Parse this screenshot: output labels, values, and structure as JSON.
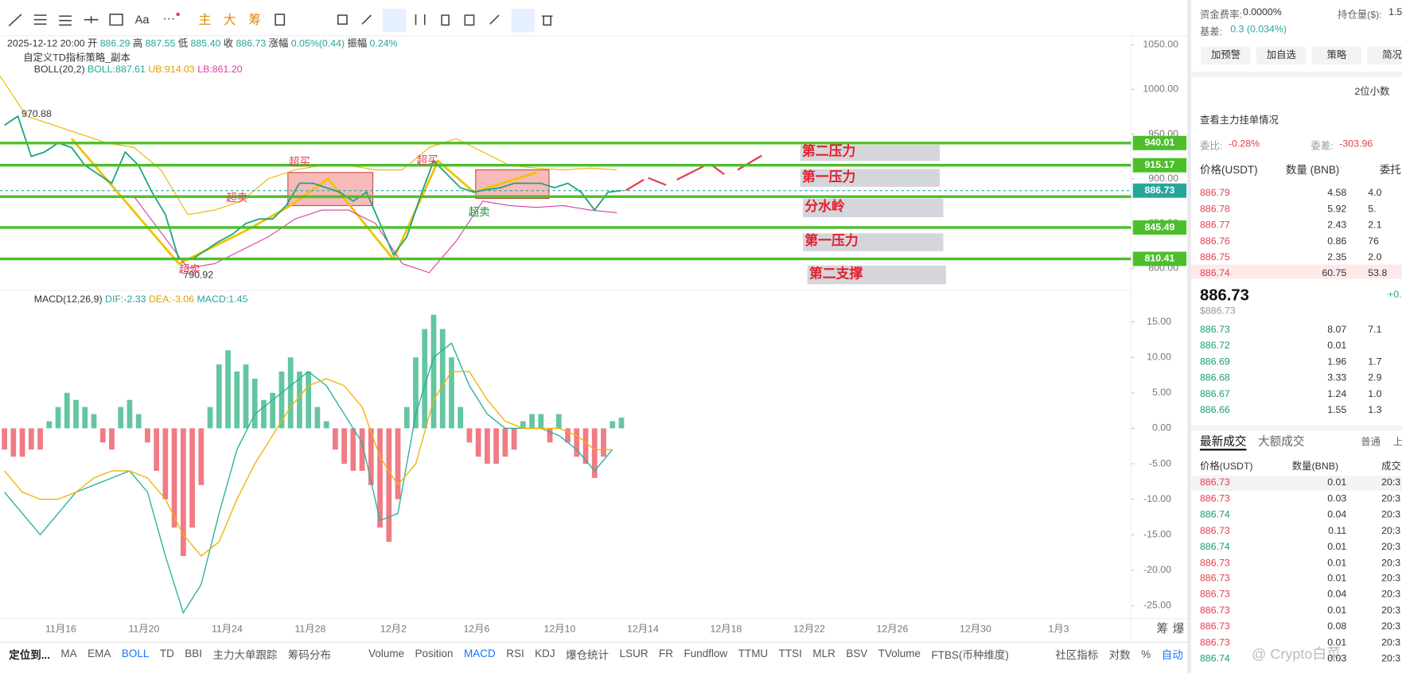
{
  "toolbar": {
    "tools": [
      "Aa",
      "主",
      "大",
      "筹"
    ]
  },
  "chart": {
    "info": {
      "datetime": "2025-12-12 20:00",
      "open_label": "开",
      "open": "886.29",
      "high_label": "高",
      "high": "887.55",
      "low_label": "低",
      "low": "885.40",
      "close_label": "收",
      "close": "886.73",
      "change_label": "涨幅",
      "change": "0.05%(0.44)",
      "amp_label": "振幅",
      "amp": "0.24%"
    },
    "strategy": "自定义TD指标策略_副本",
    "boll": {
      "name": "BOLL(20,2)",
      "boll": "BOLL:887.61",
      "ub": "UB:914.03",
      "lb": "LB:861.20"
    },
    "price_pane": {
      "ylim": [
        778,
        1060
      ],
      "yticks": [
        {
          "value": 1050,
          "label": "1050.00"
        },
        {
          "value": 1000,
          "label": "1000.00"
        },
        {
          "value": 950,
          "label": "950.00"
        },
        {
          "value": 900,
          "label": "900.00"
        },
        {
          "value": 850,
          "label": "850.00"
        },
        {
          "value": 800,
          "label": "800.00"
        }
      ],
      "closes": [
        960,
        970,
        925,
        930,
        940,
        935,
        915,
        905,
        895,
        930,
        915,
        885,
        860,
        810,
        810,
        820,
        830,
        838,
        850,
        855,
        855,
        870,
        895,
        895,
        890,
        885,
        875,
        885,
        850,
        815,
        835,
        880,
        920,
        905,
        890,
        885,
        888,
        890,
        895,
        895,
        895,
        890,
        895,
        885,
        865,
        885,
        886.73
      ],
      "boll_ub": [
        1015,
        970,
        960,
        950,
        940,
        935,
        910,
        860,
        865,
        875,
        900,
        910,
        915,
        915,
        910,
        910,
        935,
        945,
        930,
        915,
        912,
        910,
        912,
        910
      ],
      "boll_lb": [
        null,
        null,
        null,
        null,
        null,
        880,
        840,
        800,
        805,
        820,
        835,
        855,
        865,
        865,
        850,
        805,
        795,
        830,
        875,
        870,
        868,
        870,
        865,
        862
      ],
      "levels": [
        940.01,
        915.17,
        845.49,
        810.41
      ],
      "watershed": 880,
      "last_price": 886.73,
      "high_marker": "970.88",
      "low_marker": "790.92",
      "signals": [
        "超买",
        "超买",
        "超卖",
        "超卖",
        "超卖"
      ],
      "annotations": [
        "第二压力",
        "第一压力",
        "分水岭",
        "第一压力",
        "第二支撑"
      ]
    },
    "macd_pane": {
      "title": "MACD(12,26,9)",
      "dif_label": "DIF:-2.33",
      "dea_label": "DEA:-3.06",
      "macd_label": "MACD:1.45",
      "ylim": [
        -27.2,
        16.9
      ],
      "yticks": [
        {
          "value": 15,
          "label": "15.00"
        },
        {
          "value": 10,
          "label": "10.00"
        },
        {
          "value": 5,
          "label": "5.00"
        },
        {
          "value": 0,
          "label": "0.00"
        },
        {
          "value": -5,
          "label": "-5.00"
        },
        {
          "value": -10,
          "label": "-10.00"
        },
        {
          "value": -15,
          "label": "-15.00"
        },
        {
          "value": -20,
          "label": "-20.00"
        },
        {
          "value": -25,
          "label": "-25.00"
        }
      ],
      "hist": [
        -3,
        -4,
        -4,
        -3,
        -3,
        1,
        3,
        5,
        4,
        3,
        2,
        -2,
        -3,
        3,
        4,
        2,
        -2,
        -6,
        -10,
        -14,
        -18,
        -14,
        -8,
        3,
        9,
        11,
        8,
        9,
        7,
        4,
        5,
        8,
        10,
        8,
        8,
        3,
        1,
        -3,
        -5,
        -6,
        -6,
        -8,
        -14,
        -16,
        -10,
        3,
        10,
        14,
        16,
        14,
        10,
        3,
        -2,
        -4,
        -5,
        -5,
        -4,
        -3,
        1,
        2,
        2,
        -2,
        2,
        -2,
        -4,
        -5,
        -7,
        -4,
        1,
        1.5
      ],
      "dif": [
        -9,
        -12,
        -15,
        -12,
        -9,
        -8,
        -7,
        -6,
        -9,
        -18,
        -26,
        -22,
        -12,
        -3,
        2,
        4,
        6,
        8,
        6,
        2,
        -2,
        -13,
        -12,
        2,
        10,
        12,
        6,
        2,
        0,
        0,
        0,
        -1,
        -3,
        -6,
        -3
      ],
      "dea": [
        -6,
        -9,
        -10,
        -10,
        -9,
        -7,
        -6,
        -6,
        -7,
        -10,
        -15,
        -18,
        -16,
        -10,
        -5,
        -1,
        3,
        6,
        7,
        6,
        3,
        -4,
        -8,
        -5,
        4,
        8,
        8,
        4,
        1,
        0,
        0,
        0,
        -1,
        -3,
        -3
      ]
    },
    "x_axis": {
      "labels": [
        "11月16",
        "11月20",
        "11月24",
        "11月28",
        "12月2",
        "12月6",
        "12月10",
        "12月14",
        "12月18",
        "12月22",
        "12月26",
        "12月30",
        "1月3"
      ],
      "right": [
        "筹",
        "爆"
      ]
    }
  },
  "bottom_bar": {
    "locate": "定位到...",
    "indicators": [
      "MA",
      "EMA",
      "BOLL",
      "TD",
      "BBI",
      "主力大单跟踪",
      "筹码分布",
      "Volume",
      "Position",
      "MACD",
      "RSI",
      "KDJ",
      "爆仓统计",
      "LSUR",
      "FR",
      "Fundflow",
      "TTMU",
      "TTSI",
      "MLR",
      "BSV",
      "TVolume",
      "FTBS(币种维度)"
    ],
    "community": "社区指标",
    "log": "对数",
    "percent": "%",
    "auto": "自动"
  },
  "watermark": "@ Crypto白菜",
  "side_panel": {
    "funding_label": "资金费率:",
    "funding": "0.0000%",
    "oi_label": "持仓量($):",
    "oi": "1.5",
    "basis_label": "基差:",
    "basis": "0.3 (0.034%)",
    "buttons": [
      "加预警",
      "加自选",
      "策略",
      "简况"
    ],
    "decimals": "2位小数",
    "main_orders": "查看主力挂单情况",
    "ratio_label": "委比:",
    "ratio": "-0.28%",
    "diff_label": "委差:",
    "diff": "-303.96",
    "book_headers": [
      "价格(USDT)",
      "数量 (BNB)",
      "委托"
    ],
    "asks": [
      [
        886.79,
        4.58,
        "4.0"
      ],
      [
        886.78,
        5.92,
        "5."
      ],
      [
        886.77,
        2.43,
        "2.1"
      ],
      [
        886.76,
        0.86,
        "76"
      ],
      [
        886.75,
        2.35,
        "2.0"
      ],
      [
        886.74,
        60.75,
        "53.8"
      ]
    ],
    "mid_price": "886.73",
    "mid_usd": "$886.73",
    "mid_change": "+0.",
    "bids": [
      [
        886.73,
        8.07,
        "7.1"
      ],
      [
        886.72,
        0.01
      ],
      [
        886.69,
        1.96,
        "1.7"
      ],
      [
        886.68,
        3.33,
        "2.9"
      ],
      [
        886.67,
        1.24,
        "1.0"
      ],
      [
        886.66,
        1.55,
        "1.3"
      ]
    ],
    "tabs": [
      "最新成交",
      "大额成交"
    ],
    "filter": "普通",
    "filter2": "上",
    "trade_headers": [
      "价格(USDT)",
      "数量(BNB)",
      "成交"
    ],
    "trades": [
      {
        "price": "886.73",
        "qty": "0.01",
        "time": "20:3",
        "side": "sell"
      },
      {
        "price": "886.73",
        "qty": "0.03",
        "time": "20:3",
        "side": "sell"
      },
      {
        "price": "886.74",
        "qty": "0.04",
        "time": "20:3",
        "side": "buy"
      },
      {
        "price": "886.73",
        "qty": "0.11",
        "time": "20:3",
        "side": "sell"
      },
      {
        "price": "886.74",
        "qty": "0.01",
        "time": "20:3",
        "side": "buy"
      },
      {
        "price": "886.73",
        "qty": "0.01",
        "time": "20:3",
        "side": "sell"
      },
      {
        "price": "886.73",
        "qty": "0.01",
        "time": "20:3",
        "side": "sell"
      },
      {
        "price": "886.73",
        "qty": "0.04",
        "time": "20:3",
        "side": "sell"
      },
      {
        "price": "886.73",
        "qty": "0.01",
        "time": "20:3",
        "side": "sell"
      },
      {
        "price": "886.73",
        "qty": "0.08",
        "time": "20:3",
        "side": "sell"
      },
      {
        "price": "886.73",
        "qty": "0.01",
        "time": "20:3",
        "side": "sell"
      },
      {
        "price": "886.74",
        "qty": "0.03",
        "time": "20:3",
        "side": "buy"
      }
    ]
  }
}
